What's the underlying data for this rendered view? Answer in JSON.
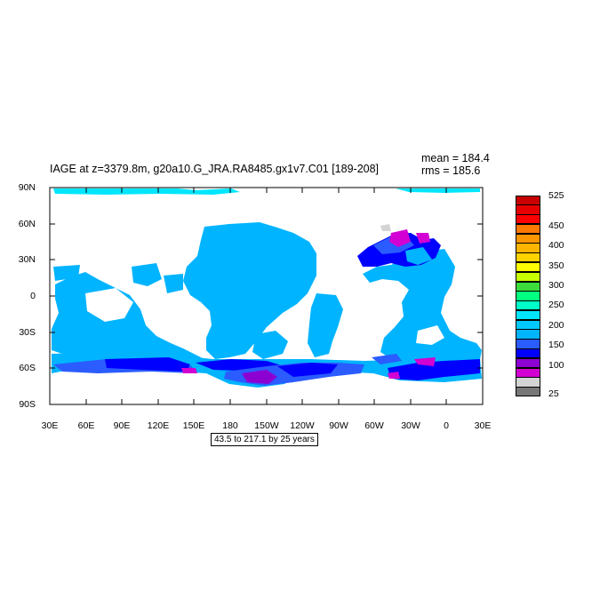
{
  "title": "IAGE at z=3379.8m, g20a10.G_JRA.RA8485.gx1v7.C01 [189-208]",
  "stats": {
    "mean": "mean = 184.4",
    "rms": "rms = 185.6"
  },
  "lat_labels": [
    "90N",
    "60N",
    "30N",
    "0",
    "30S",
    "60S",
    "90S"
  ],
  "lon_labels": [
    "30E",
    "60E",
    "90E",
    "120E",
    "150E",
    "180",
    "150W",
    "120W",
    "90W",
    "60W",
    "30W",
    "0",
    "30E"
  ],
  "range_label": "43.5 to 217.1 by 25 years",
  "colorbar": {
    "colors_bottom_to_top": [
      "#777777",
      "#d4d4d4",
      "#d200d2",
      "#8c00d2",
      "#0000ff",
      "#2a5cff",
      "#00b4ff",
      "#00c8ff",
      "#00e6ff",
      "#00ffc8",
      "#00ff80",
      "#3cdc3c",
      "#c8ff00",
      "#ffff00",
      "#ffd200",
      "#ffb400",
      "#ff9600",
      "#ff7800",
      "#ff0000",
      "#e60000",
      "#c80000"
    ],
    "labels": [
      "25",
      "100",
      "150",
      "200",
      "250",
      "300",
      "350",
      "400",
      "450",
      "525"
    ]
  },
  "legend_colors": {
    "light_blue": "#00b4ff",
    "medium_blue": "#2a5cff",
    "blue": "#0000ff",
    "purple": "#8c00d2",
    "magenta": "#d200d2",
    "light_cyan": "#00e6ff",
    "light_gray": "#d4d4d4"
  }
}
